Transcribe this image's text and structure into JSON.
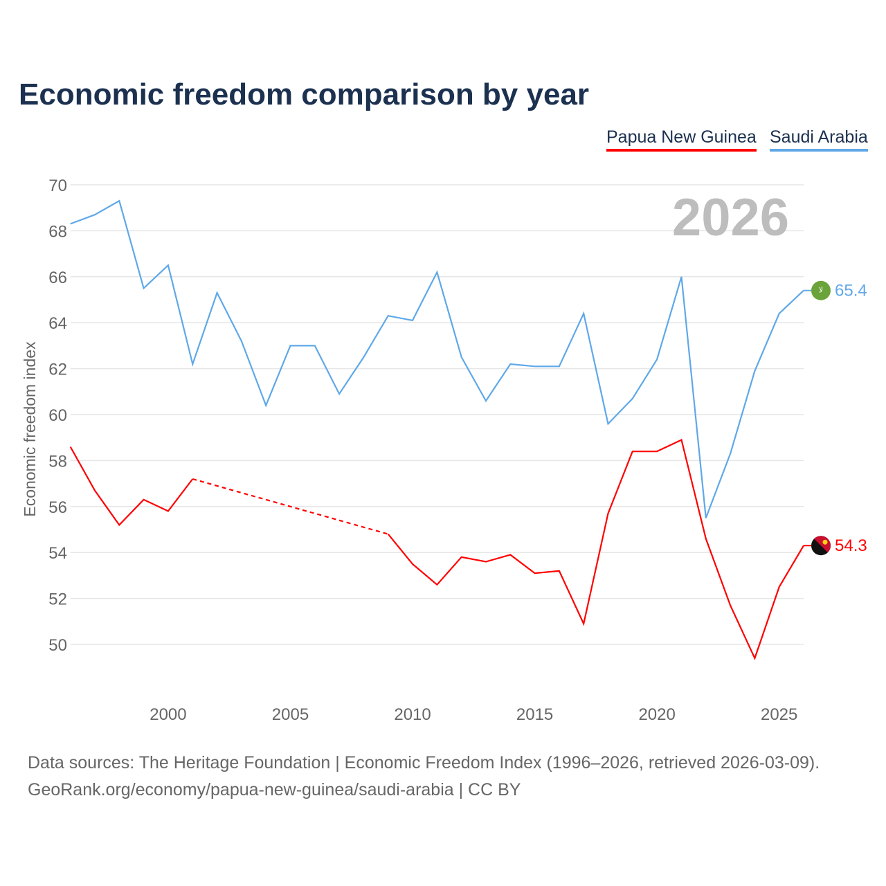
{
  "title": "Economic freedom comparison by year",
  "footer": {
    "line1": "Data sources: The Heritage Foundation | Economic Freedom Index (1996–2026, retrieved 2026-03-09).",
    "line2": "GeoRank.org/economy/papua-new-guinea/saudi-arabia | CC BY"
  },
  "chart_data": {
    "type": "line",
    "title": "Economic freedom comparison by year",
    "xlabel": "",
    "ylabel": "Economic freedom index",
    "watermark_year": "2026",
    "xlim": [
      1996,
      2026
    ],
    "ylim": [
      48,
      70
    ],
    "yticks": [
      50,
      52,
      54,
      56,
      58,
      60,
      62,
      64,
      66,
      68,
      70
    ],
    "xticks": [
      2000,
      2005,
      2010,
      2015,
      2020,
      2025
    ],
    "grid": true,
    "legend_position": "top-right",
    "x": [
      1996,
      1997,
      1998,
      1999,
      2000,
      2001,
      2002,
      2003,
      2004,
      2005,
      2006,
      2007,
      2008,
      2009,
      2010,
      2011,
      2012,
      2013,
      2014,
      2015,
      2016,
      2017,
      2018,
      2019,
      2020,
      2021,
      2022,
      2023,
      2024,
      2025,
      2026
    ],
    "series": [
      {
        "name": "Papua New Guinea",
        "color": "#ff0000",
        "end_label": "54.3",
        "flag": "papua-new-guinea-flag",
        "values": [
          58.6,
          56.7,
          55.2,
          56.3,
          55.8,
          57.2,
          null,
          null,
          null,
          null,
          null,
          null,
          null,
          54.8,
          53.5,
          52.6,
          53.8,
          53.6,
          53.9,
          53.1,
          53.2,
          50.9,
          55.7,
          58.4,
          58.4,
          58.9,
          54.6,
          51.7,
          49.4,
          52.5,
          54.3
        ]
      },
      {
        "name": "Saudi Arabia",
        "color": "#5fa8e8",
        "end_label": "65.4",
        "flag": "saudi-arabia-flag",
        "values": [
          68.3,
          68.7,
          69.3,
          65.5,
          66.5,
          62.2,
          65.3,
          63.2,
          60.4,
          63.0,
          63.0,
          60.9,
          62.5,
          64.3,
          64.1,
          66.2,
          62.5,
          60.6,
          62.2,
          62.1,
          62.1,
          64.4,
          59.6,
          60.7,
          62.4,
          66.0,
          55.5,
          58.3,
          61.9,
          64.4,
          65.4
        ]
      }
    ]
  }
}
